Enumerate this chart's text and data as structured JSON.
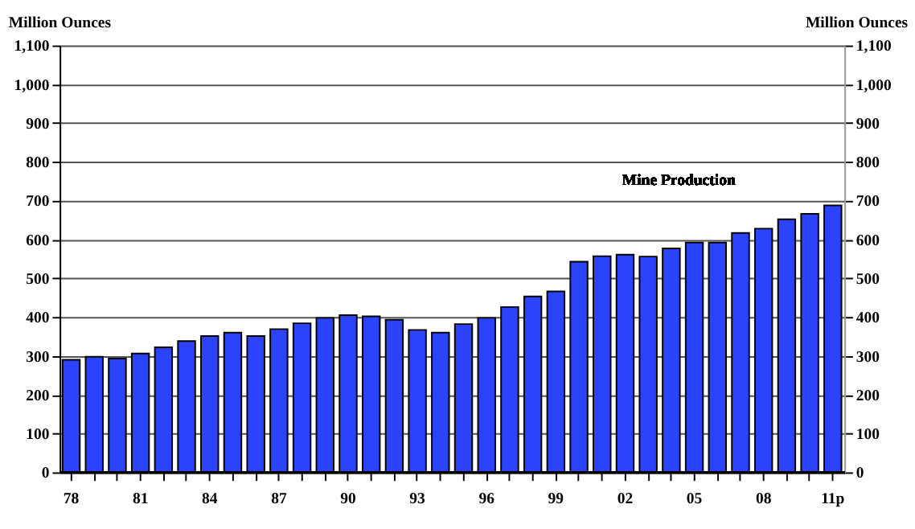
{
  "chart_data": {
    "type": "bar",
    "ylabel": "Million Ounces",
    "y2label": "Million Ounces",
    "annotations": [
      "Mine Production"
    ],
    "categories": [
      "78",
      null,
      null,
      "81",
      null,
      null,
      "84",
      null,
      null,
      "87",
      null,
      null,
      "90",
      null,
      null,
      "93",
      null,
      null,
      "96",
      null,
      null,
      "99",
      null,
      null,
      "02",
      null,
      null,
      "05",
      null,
      null,
      "08",
      null,
      null,
      "11p"
    ],
    "values": [
      290,
      298,
      293,
      306,
      322,
      338,
      351,
      360,
      351,
      369,
      384,
      398,
      405,
      402,
      393,
      367,
      360,
      382,
      398,
      426,
      453,
      466,
      543,
      557,
      561,
      556,
      577,
      592,
      592,
      617,
      628,
      652,
      666,
      688
    ],
    "color": "#2b44fb",
    "ylim": [
      0,
      1100
    ],
    "yticks": [
      0,
      100,
      200,
      300,
      400,
      500,
      600,
      700,
      800,
      900,
      {
        "value": 1000,
        "label": "1,000"
      },
      {
        "value": 1100,
        "label": "1,100"
      }
    ],
    "y2lim": [
      0,
      1100
    ],
    "y2ticks": [
      0,
      100,
      200,
      300,
      400,
      500,
      600,
      700,
      800,
      900,
      {
        "value": 1000,
        "label": "1,000"
      },
      {
        "value": 1100,
        "label": "1,100"
      }
    ],
    "grid": "y"
  }
}
